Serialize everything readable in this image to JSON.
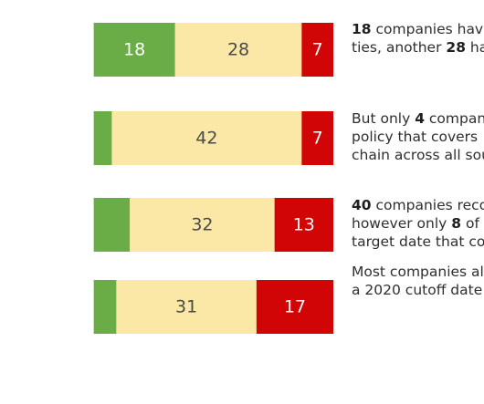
{
  "colors": {
    "green": "#6aad46",
    "yellow": "#fbe8a7",
    "red": "#d10505",
    "text_on_light": "#4a4a4a",
    "text_on_dark": "#ffffff"
  },
  "chart_data": {
    "type": "bar",
    "orientation": "horizontal",
    "stacked": true,
    "rows": [
      {
        "segments": [
          {
            "color": "green",
            "value": 18
          },
          {
            "color": "yellow",
            "value": 28
          },
          {
            "color": "red",
            "value": 7
          }
        ]
      },
      {
        "segments": [
          {
            "color": "green",
            "value": 4
          },
          {
            "color": "yellow",
            "value": 42
          },
          {
            "color": "red",
            "value": 7
          }
        ]
      },
      {
        "segments": [
          {
            "color": "green",
            "value": 8
          },
          {
            "color": "yellow",
            "value": 32
          },
          {
            "color": "red",
            "value": 13
          }
        ]
      },
      {
        "segments": [
          {
            "color": "green",
            "value": 5
          },
          {
            "color": "yellow",
            "value": 31
          },
          {
            "color": "red",
            "value": 17
          }
        ]
      }
    ],
    "labels": [
      [
        "18",
        "28",
        "7"
      ],
      [
        "",
        "42",
        "7"
      ],
      [
        "",
        "32",
        "13"
      ],
      [
        "",
        "31",
        "17"
      ]
    ]
  },
  "notes": [
    {
      "lines": [
        [
          {
            "b": true,
            "t": "18"
          },
          {
            "t": " companies have"
          }
        ],
        [
          {
            "t": "ties, another "
          },
          {
            "b": true,
            "t": "28"
          },
          {
            "t": " ha"
          }
        ]
      ]
    },
    {
      "lines": [
        [
          {
            "t": "But only "
          },
          {
            "b": true,
            "t": "4"
          },
          {
            "t": " compan"
          }
        ],
        [
          {
            "t": "policy that covers "
          }
        ],
        [
          {
            "t": "chain across all sou"
          }
        ]
      ]
    },
    {
      "lines": [
        [
          {
            "b": true,
            "t": "40"
          },
          {
            "t": " companies reco"
          }
        ],
        [
          {
            "t": "however only "
          },
          {
            "b": true,
            "t": "8"
          },
          {
            "t": " of"
          }
        ],
        [
          {
            "t": "target date that co"
          }
        ]
      ]
    },
    {
      "lines": [
        [
          {
            "t": "Most companies al"
          }
        ],
        [
          {
            "t": "a 2020 cutoff date"
          }
        ]
      ]
    }
  ]
}
